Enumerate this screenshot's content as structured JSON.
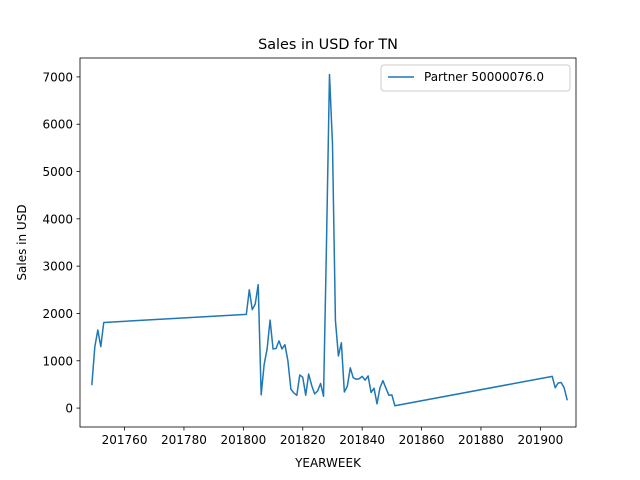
{
  "chart_data": {
    "type": "line",
    "title": "Sales in USD for TN",
    "xlabel": "YEARWEEK",
    "ylabel": "Sales in USD",
    "xlim": [
      201745,
      201912
    ],
    "ylim": [
      -400,
      7400
    ],
    "x_ticks": [
      201760,
      201780,
      201800,
      201820,
      201840,
      201860,
      201880,
      201900
    ],
    "y_ticks": [
      0,
      1000,
      2000,
      3000,
      4000,
      5000,
      6000,
      7000
    ],
    "grid": false,
    "legend_position": "top-right",
    "series": [
      {
        "name": "Partner 50000076.0",
        "color": "#1f77b4",
        "points": [
          [
            201749,
            500
          ],
          [
            201750,
            1300
          ],
          [
            201751,
            1650
          ],
          [
            201752,
            1300
          ],
          [
            201753,
            1810
          ],
          [
            201801,
            1980
          ],
          [
            201802,
            2500
          ],
          [
            201803,
            2080
          ],
          [
            201804,
            2200
          ],
          [
            201805,
            2610
          ],
          [
            201806,
            280
          ],
          [
            201807,
            920
          ],
          [
            201808,
            1250
          ],
          [
            201809,
            1860
          ],
          [
            201810,
            1250
          ],
          [
            201811,
            1260
          ],
          [
            201812,
            1420
          ],
          [
            201813,
            1250
          ],
          [
            201814,
            1340
          ],
          [
            201815,
            1000
          ],
          [
            201816,
            400
          ],
          [
            201817,
            320
          ],
          [
            201818,
            270
          ],
          [
            201819,
            700
          ],
          [
            201820,
            650
          ],
          [
            201821,
            270
          ],
          [
            201822,
            720
          ],
          [
            201823,
            480
          ],
          [
            201824,
            300
          ],
          [
            201825,
            360
          ],
          [
            201826,
            520
          ],
          [
            201827,
            250
          ],
          [
            201828,
            3500
          ],
          [
            201829,
            7050
          ],
          [
            201830,
            5600
          ],
          [
            201831,
            1850
          ],
          [
            201832,
            1100
          ],
          [
            201833,
            1380
          ],
          [
            201834,
            340
          ],
          [
            201835,
            460
          ],
          [
            201836,
            850
          ],
          [
            201837,
            640
          ],
          [
            201838,
            610
          ],
          [
            201839,
            620
          ],
          [
            201840,
            670
          ],
          [
            201841,
            590
          ],
          [
            201842,
            680
          ],
          [
            201843,
            330
          ],
          [
            201844,
            420
          ],
          [
            201845,
            90
          ],
          [
            201846,
            430
          ],
          [
            201847,
            580
          ],
          [
            201848,
            420
          ],
          [
            201849,
            270
          ],
          [
            201850,
            280
          ],
          [
            201851,
            50
          ],
          [
            201904,
            670
          ],
          [
            201905,
            430
          ],
          [
            201906,
            530
          ],
          [
            201907,
            540
          ],
          [
            201908,
            430
          ],
          [
            201909,
            180
          ]
        ]
      }
    ]
  }
}
